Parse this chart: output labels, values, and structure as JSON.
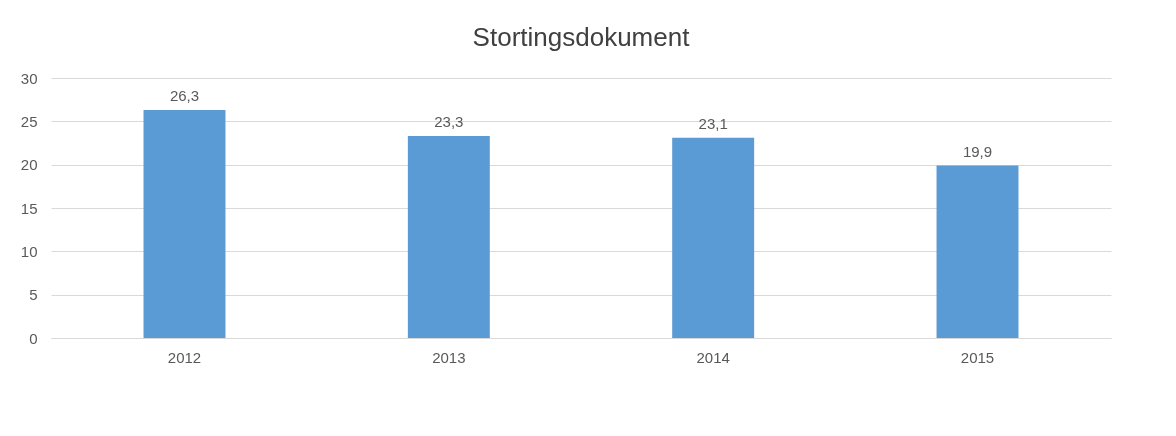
{
  "chart_data": {
    "type": "bar",
    "title": "Stortingsdokument",
    "categories": [
      "2012",
      "2013",
      "2014",
      "2015"
    ],
    "values": [
      26.3,
      23.3,
      23.1,
      19.9
    ],
    "value_labels": [
      "26,3",
      "23,3",
      "23,1",
      "19,9"
    ],
    "color": "#5b9bd5",
    "ylim": [
      0,
      30
    ],
    "yticks": [
      0,
      5,
      10,
      15,
      20,
      25,
      30
    ],
    "grid": "y"
  }
}
